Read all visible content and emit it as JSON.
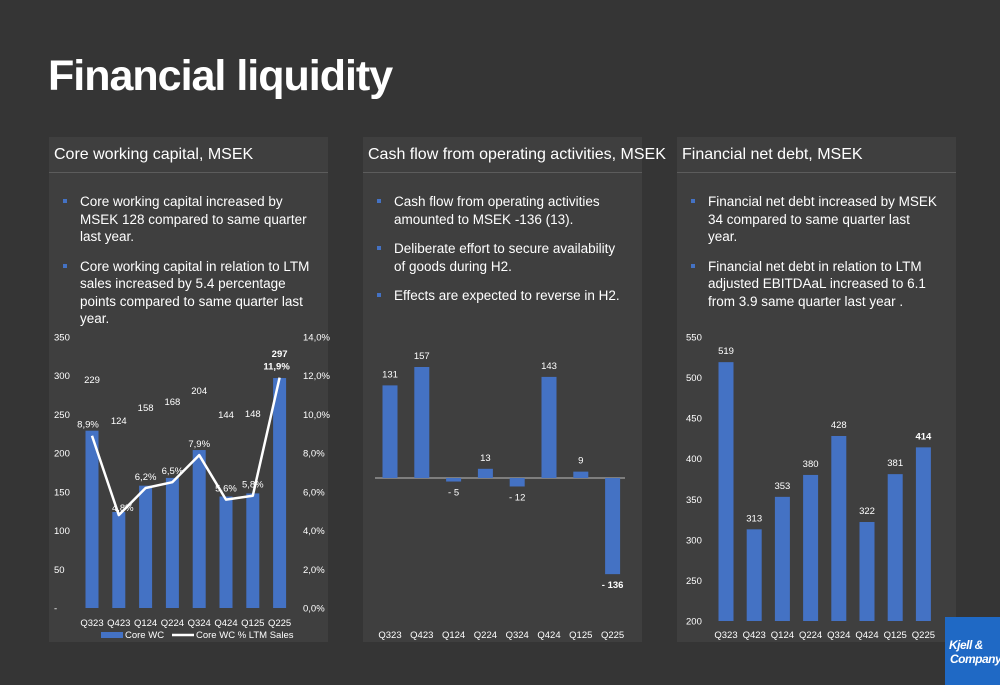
{
  "page": {
    "title": "Financial liquidity"
  },
  "logo": {
    "line1": "Kjell &",
    "line2": "Company",
    "color": "#1f69c5"
  },
  "panels": [
    {
      "heading": "Core working capital, MSEK",
      "bullets": [
        "Core working capital increased by MSEK 128 compared to same quarter last year.",
        "Core working capital in relation to LTM sales increased by 5.4 percentage points compared to same quarter last year."
      ]
    },
    {
      "heading": "Cash flow from operating activities, MSEK",
      "bullets": [
        "Cash flow from operating activities amounted to MSEK -136 (13).",
        "Deliberate effort to secure availability of goods during H2.",
        "Effects are expected to reverse in H2."
      ]
    },
    {
      "heading": "Financial net debt, MSEK",
      "bullets": [
        "Financial net debt increased by MSEK 34 compared to same quarter last year.",
        "Financial net debt in relation to LTM adjusted EBITDAaL increased to 6.1 from 3.9 same quarter last year ."
      ]
    }
  ],
  "chart_data": [
    {
      "type": "bar",
      "categories": [
        "Q323",
        "Q423",
        "Q124",
        "Q224",
        "Q324",
        "Q424",
        "Q125",
        "Q225"
      ],
      "series": [
        {
          "name": "Core WC",
          "type": "bar",
          "values": [
            229,
            124,
            158,
            168,
            204,
            144,
            148,
            297
          ],
          "labels": [
            "229",
            "124",
            "158",
            "168",
            "204",
            "144",
            "148",
            "297"
          ],
          "color": "#4472c4"
        },
        {
          "name": "Core WC % LTM Sales",
          "type": "line",
          "axis": "right",
          "values": [
            8.9,
            4.8,
            6.2,
            6.5,
            7.9,
            5.6,
            5.8,
            11.9
          ],
          "labels": [
            "8,9%",
            "4,8%",
            "6,2%",
            "6,5%",
            "7,9%",
            "5,6%",
            "5,8%",
            "11,9%"
          ],
          "color": "#ffffff"
        }
      ],
      "ylim": [
        0,
        350
      ],
      "yticks": [
        {
          "v": 0,
          "t": "-"
        },
        {
          "v": 50,
          "t": "50"
        },
        {
          "v": 100,
          "t": "100"
        },
        {
          "v": 150,
          "t": "150"
        },
        {
          "v": 200,
          "t": "200"
        },
        {
          "v": 250,
          "t": "250"
        },
        {
          "v": 300,
          "t": "300"
        },
        {
          "v": 350,
          "t": "350"
        }
      ],
      "y2lim": [
        0,
        14
      ],
      "y2ticks": [
        "0,0%",
        "2,0%",
        "4,0%",
        "6,0%",
        "8,0%",
        "10,0%",
        "12,0%",
        "14,0%"
      ],
      "legend": "bottom",
      "grid": false
    },
    {
      "type": "bar",
      "categories": [
        "Q323",
        "Q423",
        "Q124",
        "Q224",
        "Q324",
        "Q424",
        "Q125",
        "Q225"
      ],
      "series": [
        {
          "type": "bar",
          "values": [
            131,
            157,
            -5,
            13,
            -12,
            143,
            9,
            -136
          ],
          "labels": [
            "131",
            "157",
            "- 5",
            "13",
            "- 12",
            "143",
            "9",
            "- 136"
          ],
          "color": "#4472c4"
        }
      ],
      "ylim": [
        -136,
        157
      ],
      "grid": false
    },
    {
      "type": "bar",
      "categories": [
        "Q323",
        "Q423",
        "Q124",
        "Q224",
        "Q324",
        "Q424",
        "Q125",
        "Q225"
      ],
      "series": [
        {
          "type": "bar",
          "values": [
            519,
            313,
            353,
            380,
            428,
            322,
            381,
            414
          ],
          "labels": [
            "519",
            "313",
            "353",
            "380",
            "428",
            "322",
            "381",
            "414"
          ],
          "color": "#4472c4"
        }
      ],
      "ylim": [
        200,
        550
      ],
      "yticks": [
        "200",
        "250",
        "300",
        "350",
        "400",
        "450",
        "500",
        "550"
      ],
      "grid": false
    }
  ]
}
